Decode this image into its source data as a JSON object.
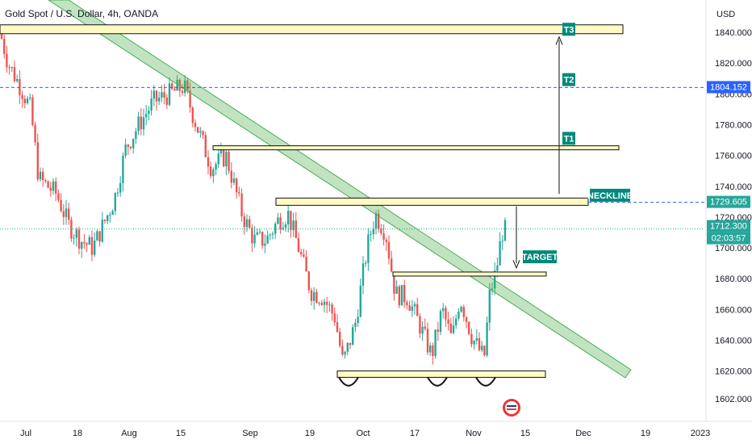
{
  "header": {
    "title": "Gold Spot / U.S. Dollar, 4h, OANDA"
  },
  "colors": {
    "up": "#26a69a",
    "down": "#ef5350",
    "zone_fill": "#fff9c4",
    "zone_stroke": "#111111",
    "channel": "#4caf50",
    "dashed": "#2962ff",
    "tag_bg": "#00897b",
    "price_tag": "#26a69a"
  },
  "chart_data": {
    "type": "candlestick",
    "currency_label": "USD",
    "y_ticks": [
      "1840.000",
      "1820.000",
      "1800.000",
      "1780.000",
      "1760.000",
      "1740.000",
      "1720.000",
      "1700.000",
      "1680.000",
      "1660.000",
      "1640.000",
      "1620.000",
      "1602.000"
    ],
    "ylim": [
      1595,
      1850
    ],
    "x_ticks": [
      "Jul",
      "18",
      "Aug",
      "15",
      "Sep",
      "19",
      "Oct",
      "17",
      "Nov",
      "15",
      "Dec",
      "19",
      "2023"
    ],
    "price_tags": [
      {
        "label": "1804.152",
        "value": 1804.15,
        "style": "blue"
      },
      {
        "label": "1729.605",
        "value": 1729.6,
        "style": "green"
      },
      {
        "label": "1712.300",
        "value": 1712.3,
        "style": "green"
      },
      {
        "label": "02:03:57",
        "value": null,
        "style": "green"
      }
    ],
    "zones": [
      {
        "label": "T3",
        "value": 1842
      },
      {
        "label": "T1",
        "value": 1765
      },
      {
        "label": "NECKLINE",
        "value": 1730
      },
      {
        "label": "TARGET",
        "value": 1683
      },
      {
        "label": "",
        "value": 1618
      }
    ],
    "annotations": [
      "T3",
      "T2",
      "T1",
      "NECKLINE",
      "TARGET"
    ],
    "current_price": 1712.3,
    "dashed_level": 1804.15
  }
}
